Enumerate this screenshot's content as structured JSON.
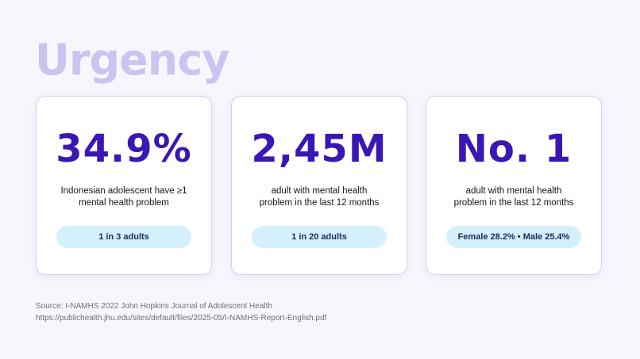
{
  "page": {
    "title": "Urgency"
  },
  "cards": [
    {
      "value": "34.9%",
      "description_lines": [
        "Indonesian adolescent have ≥1",
        "mental health problem"
      ],
      "pill": "1 in 3 adults"
    },
    {
      "value": "2,45M",
      "description_lines": [
        "adult with mental health",
        "problem in the last 12 months"
      ],
      "pill": "1 in 20 adults"
    },
    {
      "value": "No. 1",
      "description_lines": [
        "adult with mental health",
        "problem in the last 12 months"
      ],
      "pill": "Female 28.2% • Male 25.4%"
    }
  ],
  "source": {
    "line1": "Source: I-NAMHS 2022 John Hopkins Journal of Adolescent Health",
    "line2": "https://publichealth.jhu.edu/sites/default/files/2025-05/I-NAMHS-Report-English.pdf"
  },
  "colors": {
    "title": "#cbc4f0",
    "value": "#3a17b4",
    "pill_bg": "#d4f0fc",
    "card_border": "#cdd4f3",
    "background": "#f6f6fd"
  }
}
